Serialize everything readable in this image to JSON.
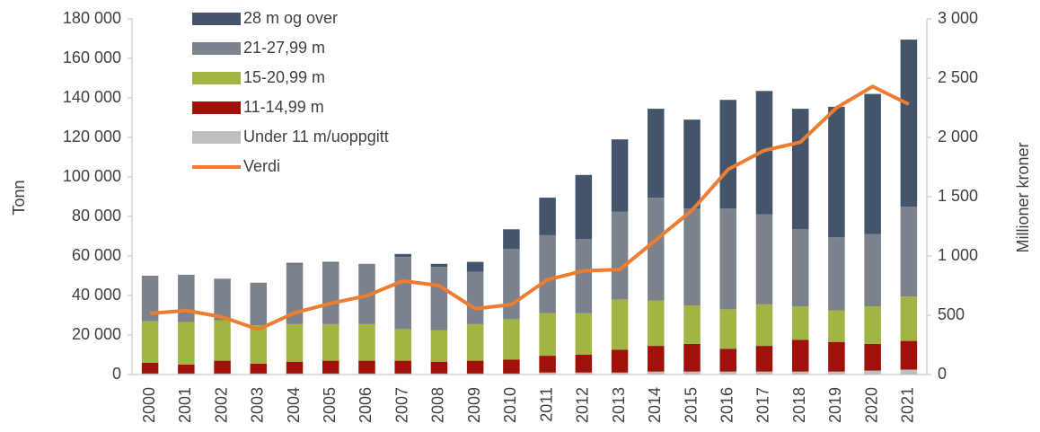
{
  "chart_data": {
    "type": "bar",
    "categories": [
      "2000",
      "2001",
      "2002",
      "2003",
      "2004",
      "2005",
      "2006",
      "2007",
      "2008",
      "2009",
      "2010",
      "2011",
      "2012",
      "2013",
      "2014",
      "2015",
      "2016",
      "2017",
      "2018",
      "2019",
      "2020",
      "2021"
    ],
    "series": [
      {
        "name": "28 m og over",
        "color": "#44546a",
        "values": [
          0,
          0,
          0,
          0,
          500,
          500,
          0,
          1500,
          1500,
          5000,
          10000,
          19000,
          32500,
          36500,
          45000,
          45000,
          55000,
          62500,
          61000,
          66000,
          71000,
          84500
        ]
      },
      {
        "name": "21-27,99 m",
        "color": "#7b828b",
        "values": [
          23000,
          24000,
          21000,
          21500,
          30500,
          31000,
          30500,
          36500,
          32000,
          26500,
          35500,
          39500,
          37500,
          44500,
          52000,
          49000,
          51000,
          45500,
          39000,
          37000,
          36500,
          45500
        ]
      },
      {
        "name": "15-20,99 m",
        "color": "#a2b443",
        "values": [
          21000,
          21500,
          20500,
          19500,
          19000,
          18500,
          18500,
          16000,
          16000,
          18500,
          20500,
          21500,
          21000,
          25500,
          23000,
          19500,
          20000,
          21000,
          17000,
          16000,
          19000,
          22500
        ]
      },
      {
        "name": "11-14,99 m",
        "color": "#a0110a",
        "values": [
          5500,
          4500,
          6500,
          5000,
          6000,
          6500,
          6500,
          6500,
          6000,
          6500,
          7000,
          8500,
          9000,
          11500,
          13000,
          14000,
          11500,
          13000,
          16000,
          15000,
          13500,
          14500
        ]
      },
      {
        "name": "Under 11 m/uoppgitt",
        "color": "#bfbfbf",
        "values": [
          500,
          500,
          500,
          500,
          500,
          500,
          500,
          500,
          500,
          500,
          500,
          1000,
          1000,
          1000,
          1500,
          1500,
          1500,
          1500,
          1500,
          1500,
          2000,
          2500
        ]
      },
      {
        "name": "Verdi",
        "type": "line",
        "axis": "y2",
        "color": "#ed7d31",
        "values": [
          515,
          540,
          485,
          380,
          520,
          600,
          665,
          790,
          750,
          555,
          590,
          800,
          875,
          885,
          1135,
          1385,
          1730,
          1890,
          1960,
          2250,
          2430,
          2280
        ]
      }
    ],
    "ylabel": "Tonn",
    "y2label": "Millioner kroner",
    "ylim": [
      0,
      180000
    ],
    "yticks": [
      0,
      {
        "value": 20000,
        "label": "20 000"
      },
      {
        "value": 40000,
        "label": "40 000"
      },
      {
        "value": 60000,
        "label": "60 000"
      },
      {
        "value": 80000,
        "label": "80 000"
      },
      {
        "value": 100000,
        "label": "100 000"
      },
      {
        "value": 120000,
        "label": "120 000"
      },
      {
        "value": 140000,
        "label": "140 000"
      },
      {
        "value": 160000,
        "label": "160 000"
      },
      {
        "value": 180000,
        "label": "180 000"
      }
    ],
    "y2lim": [
      0,
      3000
    ],
    "y2ticks": [
      0,
      500,
      {
        "value": 1000,
        "label": "1 000"
      },
      {
        "value": 1500,
        "label": "1 500"
      },
      {
        "value": 2000,
        "label": "2 000"
      },
      {
        "value": 2500,
        "label": "2 500"
      },
      {
        "value": 3000,
        "label": "3 000"
      }
    ],
    "stacked": true,
    "legend": "upper left"
  }
}
